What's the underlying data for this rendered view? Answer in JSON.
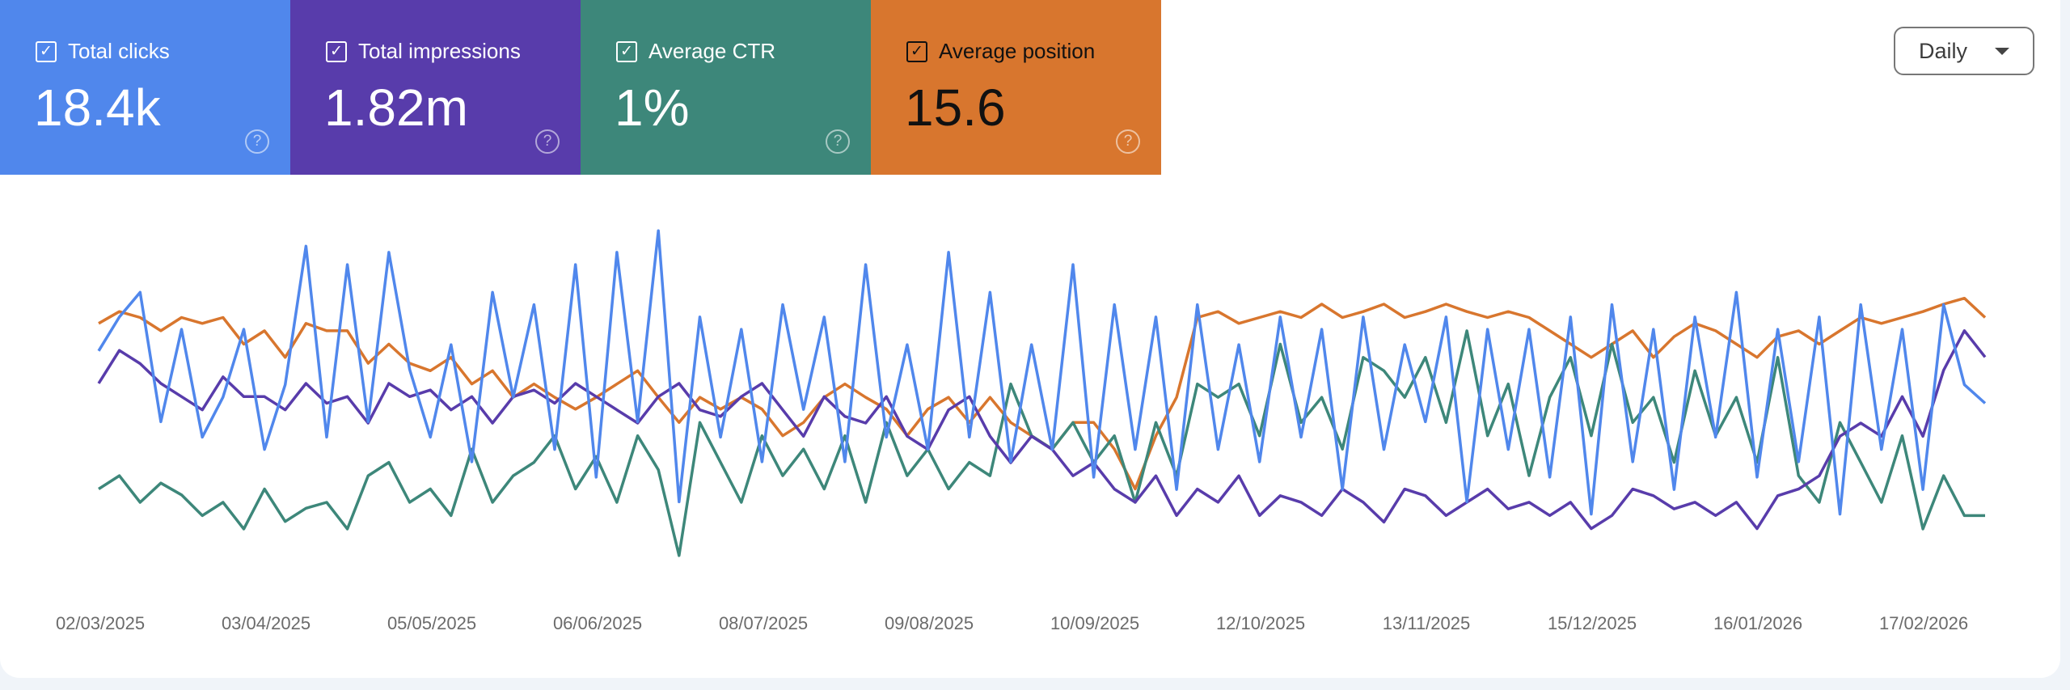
{
  "metrics": [
    {
      "label": "Total clicks",
      "value": "18.4k",
      "checked": true,
      "color": "#5087ec",
      "icon": "help-circle-icon"
    },
    {
      "label": "Total impressions",
      "value": "1.82m",
      "checked": true,
      "color": "#583cab",
      "icon": "help-circle-icon"
    },
    {
      "label": "Average CTR",
      "value": "1%",
      "checked": true,
      "color": "#3d877a",
      "icon": "help-circle-icon"
    },
    {
      "label": "Average position",
      "value": "15.6",
      "checked": true,
      "color": "#d8762e",
      "icon": "help-circle-icon"
    }
  ],
  "granularity": {
    "selected": "Daily",
    "icon": "caret-down-icon"
  },
  "chart_data": {
    "type": "line",
    "x_range": [
      "02/03/2025",
      "01/03/2026"
    ],
    "x_tick_labels": [
      "02/03/2025",
      "03/04/2025",
      "05/05/2025",
      "06/06/2025",
      "08/07/2025",
      "09/08/2025",
      "10/09/2025",
      "12/10/2025",
      "13/11/2025",
      "15/12/2025",
      "16/01/2026",
      "17/02/2026"
    ],
    "grid": false,
    "series": [
      {
        "name": "Average position",
        "color": "#d8762e",
        "y_range": [
          5,
          30
        ],
        "inverted": true,
        "values": [
          12.1,
          11.3,
          11.7,
          12.6,
          11.7,
          12.1,
          11.7,
          13.5,
          12.6,
          14.4,
          12.1,
          12.6,
          12.6,
          14.8,
          13.5,
          14.8,
          15.3,
          14.4,
          16.2,
          15.3,
          17.1,
          16.2,
          17.1,
          17.9,
          17.1,
          16.2,
          15.3,
          17.1,
          18.8,
          17.1,
          17.9,
          17.1,
          17.9,
          19.7,
          18.8,
          17.1,
          16.2,
          17.1,
          17.9,
          19.7,
          17.9,
          17.1,
          18.8,
          17.1,
          18.8,
          19.7,
          20.6,
          18.8,
          18.8,
          20.6,
          23.3,
          19.7,
          17.1,
          11.7,
          11.3,
          12.1,
          11.7,
          11.3,
          11.7,
          10.8,
          11.7,
          11.3,
          10.8,
          11.7,
          11.3,
          10.8,
          11.3,
          11.7,
          11.3,
          11.7,
          12.6,
          13.5,
          14.4,
          13.5,
          12.6,
          14.4,
          13.0,
          12.1,
          12.6,
          13.5,
          14.4,
          13.0,
          12.6,
          13.5,
          12.6,
          11.7,
          12.1,
          11.7,
          11.3,
          10.8,
          10.4,
          11.7
        ]
      },
      {
        "name": "Average CTR",
        "color": "#3d877a",
        "y_range": [
          0,
          2.5
        ],
        "values": [
          0.67,
          0.76,
          0.58,
          0.71,
          0.63,
          0.49,
          0.58,
          0.4,
          0.67,
          0.45,
          0.54,
          0.58,
          0.4,
          0.76,
          0.85,
          0.58,
          0.67,
          0.49,
          0.94,
          0.58,
          0.76,
          0.85,
          1.03,
          0.67,
          0.89,
          0.58,
          1.03,
          0.8,
          0.22,
          1.12,
          0.85,
          0.58,
          1.03,
          0.76,
          0.94,
          0.67,
          1.03,
          0.58,
          1.12,
          0.76,
          0.94,
          0.67,
          0.85,
          0.76,
          1.38,
          1.03,
          0.94,
          1.12,
          0.85,
          1.03,
          0.58,
          1.12,
          0.76,
          1.38,
          1.29,
          1.38,
          1.03,
          1.65,
          1.12,
          1.29,
          0.94,
          1.56,
          1.47,
          1.29,
          1.56,
          1.12,
          1.74,
          1.03,
          1.38,
          0.76,
          1.29,
          1.56,
          1.03,
          1.65,
          1.12,
          1.29,
          0.85,
          1.47,
          1.03,
          1.29,
          0.85,
          1.56,
          0.76,
          0.58,
          1.12,
          0.85,
          0.58,
          1.03,
          0.4,
          0.76,
          0.49,
          0.49
        ]
      },
      {
        "name": "Total impressions",
        "color": "#583cab",
        "y_range": [
          0,
          8000
        ],
        "values": [
          4429,
          5143,
          4857,
          4429,
          4143,
          3857,
          4571,
          4143,
          4143,
          3857,
          4429,
          4000,
          4143,
          3571,
          4429,
          4143,
          4286,
          3857,
          4143,
          3571,
          4143,
          4286,
          4000,
          4429,
          4143,
          3857,
          3571,
          4143,
          4429,
          3857,
          3714,
          4143,
          4429,
          3857,
          3286,
          4143,
          3714,
          3571,
          4143,
          3286,
          3000,
          3857,
          4143,
          3286,
          2714,
          3286,
          3000,
          2429,
          2714,
          2143,
          1857,
          2429,
          1571,
          2143,
          1857,
          2429,
          1571,
          2000,
          1857,
          1571,
          2143,
          1857,
          1429,
          2143,
          2000,
          1571,
          1857,
          2143,
          1714,
          1857,
          1571,
          1857,
          1286,
          1571,
          2143,
          2000,
          1714,
          1857,
          1571,
          1857,
          1286,
          2000,
          2143,
          2429,
          3286,
          3571,
          3286,
          4143,
          3286,
          4714,
          5571,
          5000
        ]
      },
      {
        "name": "Total clicks",
        "color": "#5087ec",
        "y_range": [
          0,
          120
        ],
        "values": [
          77,
          88,
          96,
          54,
          84,
          49,
          62,
          84,
          45,
          66,
          111,
          49,
          105,
          54,
          109,
          71,
          49,
          79,
          41,
          96,
          62,
          92,
          45,
          105,
          36,
          109,
          54,
          116,
          28,
          88,
          49,
          84,
          41,
          92,
          58,
          88,
          41,
          105,
          49,
          79,
          45,
          109,
          49,
          96,
          41,
          79,
          45,
          105,
          36,
          92,
          45,
          88,
          32,
          92,
          45,
          79,
          41,
          88,
          49,
          84,
          32,
          88,
          45,
          79,
          54,
          88,
          28,
          84,
          45,
          84,
          36,
          88,
          24,
          92,
          41,
          84,
          32,
          88,
          49,
          96,
          36,
          84,
          41,
          88,
          24,
          92,
          45,
          84,
          32,
          92,
          66,
          60
        ]
      }
    ]
  }
}
